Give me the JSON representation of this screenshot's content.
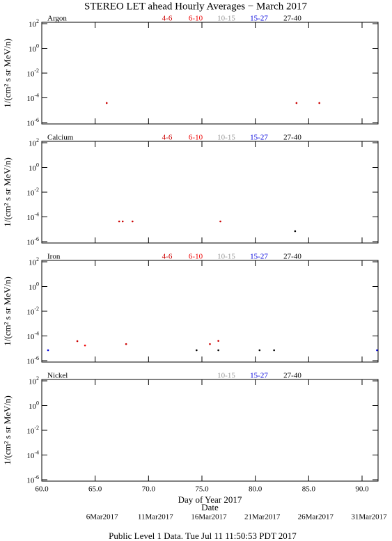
{
  "title": "STEREO LET ahead Hourly Averages − March 2017",
  "footer": "Public Level 1 Data. Tue Jul 11 11:50:53 PDT 2017",
  "chart_data": [
    {
      "type": "scatter",
      "label": "Argon",
      "ylabel": "1/(cm² s sr MeV/n)",
      "log_y": true,
      "xlim": [
        60,
        91.5
      ],
      "ylim": [
        1e-06,
        100
      ],
      "xticks": [
        60,
        65,
        70,
        75,
        80,
        85,
        90
      ],
      "yticks": [
        {
          "value": 100,
          "label": "10^2"
        },
        {
          "value": 1,
          "label": "10^0"
        },
        {
          "value": 0.01,
          "label": "10^-2"
        },
        {
          "value": 0.0001,
          "label": "10^-4"
        },
        {
          "value": 1e-06,
          "label": "10^-6"
        }
      ],
      "series": [
        {
          "name": "4-6",
          "color": "#cc0000",
          "x": [
            66.08,
            83.86,
            86.0
          ],
          "values": [
            3.8e-05,
            3.8e-05,
            3.8e-05
          ]
        },
        {
          "name": "6-10",
          "color": "#ee0000",
          "x": [],
          "values": []
        },
        {
          "name": "10-15",
          "color": "#999999",
          "x": [],
          "values": []
        },
        {
          "name": "15-27",
          "color": "#0000dd",
          "x": [],
          "values": []
        },
        {
          "name": "27-40",
          "color": "#000000",
          "x": [],
          "values": []
        }
      ]
    },
    {
      "type": "scatter",
      "label": "Calcium",
      "ylabel": "1/(cm² s sr MeV/n)",
      "log_y": true,
      "xlim": [
        60,
        91.5
      ],
      "ylim": [
        1e-06,
        100
      ],
      "xticks": [
        60,
        65,
        70,
        75,
        80,
        85,
        90
      ],
      "yticks": [
        {
          "value": 100,
          "label": "10^2"
        },
        {
          "value": 1,
          "label": "10^0"
        },
        {
          "value": 0.01,
          "label": "10^-2"
        },
        {
          "value": 0.0001,
          "label": "10^-4"
        },
        {
          "value": 1e-06,
          "label": "10^-6"
        }
      ],
      "series": [
        {
          "name": "4-6",
          "color": "#cc0000",
          "x": [
            67.25,
            67.58,
            68.5,
            76.73
          ],
          "values": [
            4.3e-05,
            4.3e-05,
            4.3e-05,
            4.3e-05
          ]
        },
        {
          "name": "6-10",
          "color": "#ee0000",
          "x": [],
          "values": []
        },
        {
          "name": "10-15",
          "color": "#999999",
          "x": [],
          "values": []
        },
        {
          "name": "15-27",
          "color": "#0000dd",
          "x": [],
          "values": []
        },
        {
          "name": "27-40",
          "color": "#000000",
          "x": [
            83.73
          ],
          "values": [
            7e-06
          ]
        }
      ]
    },
    {
      "type": "scatter",
      "label": "Iron",
      "ylabel": "1/(cm² s sr MeV/n)",
      "log_y": true,
      "xlim": [
        60,
        91.5
      ],
      "ylim": [
        1e-06,
        100
      ],
      "xticks": [
        60,
        65,
        70,
        75,
        80,
        85,
        90
      ],
      "yticks": [
        {
          "value": 100,
          "label": "10^2"
        },
        {
          "value": 1,
          "label": "10^0"
        },
        {
          "value": 0.01,
          "label": "10^-2"
        },
        {
          "value": 0.0001,
          "label": "10^-4"
        },
        {
          "value": 1e-06,
          "label": "10^-6"
        }
      ],
      "series": [
        {
          "name": "4-6",
          "color": "#cc0000",
          "x": [
            63.33,
            67.9,
            75.75,
            76.54
          ],
          "values": [
            3.8e-05,
            2.2e-05,
            2.2e-05,
            4e-05
          ]
        },
        {
          "name": "6-10",
          "color": "#ee0000",
          "x": [
            64.05
          ],
          "values": [
            1.7e-05
          ]
        },
        {
          "name": "10-15",
          "color": "#999999",
          "x": [],
          "values": []
        },
        {
          "name": "15-27",
          "color": "#0000dd",
          "x": [
            60.59,
            91.4
          ],
          "values": [
            7e-06,
            7e-06
          ]
        },
        {
          "name": "27-40",
          "color": "#000000",
          "x": [
            74.5,
            76.54,
            80.4,
            81.76
          ],
          "values": [
            7e-06,
            7e-06,
            7e-06,
            7e-06
          ]
        }
      ]
    },
    {
      "type": "scatter",
      "label": "Nickel",
      "ylabel": "1/(cm² s sr MeV/n)",
      "log_y": true,
      "xlabel": "Day of Year 2017",
      "x2label": "Date",
      "xlim": [
        60,
        91.5
      ],
      "ylim": [
        1e-06,
        100
      ],
      "xticks": [
        {
          "value": 60,
          "label": "60.0"
        },
        {
          "value": 65,
          "label": "65.0"
        },
        {
          "value": 70,
          "label": "70.0"
        },
        {
          "value": 75,
          "label": "75.0"
        },
        {
          "value": 80,
          "label": "80.0"
        },
        {
          "value": 85,
          "label": "85.0"
        },
        {
          "value": 90,
          "label": "90.0"
        }
      ],
      "x2ticks": [
        {
          "value": 65,
          "label": "6Mar2017"
        },
        {
          "value": 70,
          "label": "11Mar2017"
        },
        {
          "value": 75,
          "label": "16Mar2017"
        },
        {
          "value": 80,
          "label": "21Mar2017"
        },
        {
          "value": 85,
          "label": "26Mar2017"
        },
        {
          "value": 90,
          "label": "31Mar2017"
        }
      ],
      "yticks": [
        {
          "value": 100,
          "label": "10^2"
        },
        {
          "value": 1,
          "label": "10^0"
        },
        {
          "value": 0.01,
          "label": "10^-2"
        },
        {
          "value": 0.0001,
          "label": "10^-4"
        },
        {
          "value": 1e-06,
          "label": "10^-6"
        }
      ],
      "series": [
        {
          "name": "10-15",
          "color": "#999999",
          "x": [],
          "values": []
        },
        {
          "name": "15-27",
          "color": "#0000dd",
          "x": [],
          "values": []
        },
        {
          "name": "27-40",
          "color": "#000000",
          "x": [],
          "values": []
        }
      ]
    }
  ]
}
